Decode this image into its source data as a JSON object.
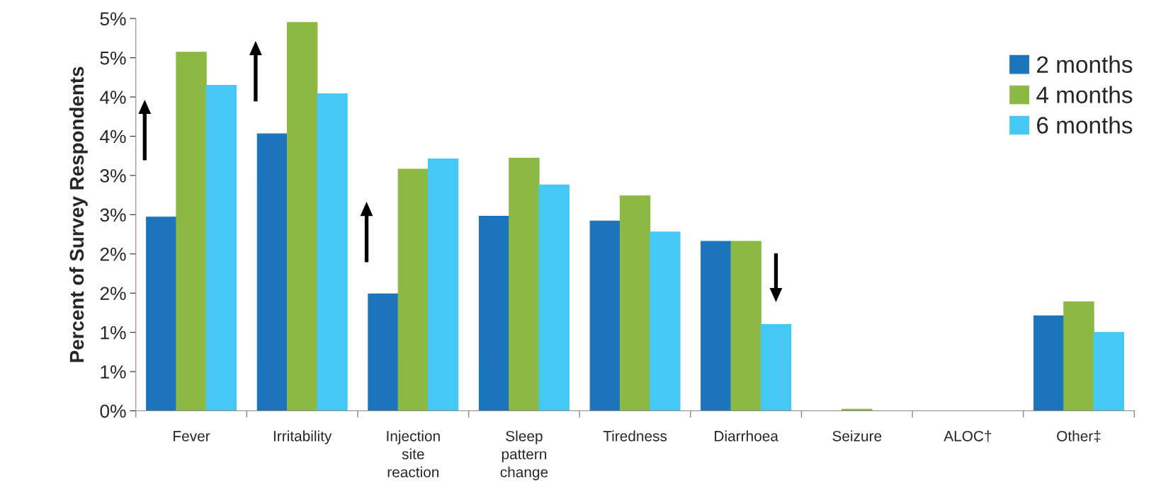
{
  "chart_data": {
    "type": "bar",
    "ylabel": "Percent of Survey Respondents",
    "categories": [
      "Fever",
      "Irritability",
      "Injection\nsite\nreaction",
      "Sleep\npattern\nchange",
      "Tiredness",
      "Diarrhoea",
      "Seizure",
      "ALOC†",
      "Other‡"
    ],
    "series": [
      {
        "name": "2 months",
        "color": "#1c75bc",
        "values": [
          2.47,
          3.53,
          1.49,
          2.48,
          2.42,
          2.16,
          0,
          0,
          1.21
        ]
      },
      {
        "name": "4 months",
        "color": "#8cb944",
        "values": [
          4.57,
          4.95,
          3.08,
          3.22,
          2.74,
          2.16,
          0.02,
          0,
          1.39
        ]
      },
      {
        "name": "6 months",
        "color": "#45c8f5",
        "values": [
          4.15,
          4.04,
          3.21,
          2.88,
          2.28,
          1.1,
          0,
          0,
          1.0
        ]
      }
    ],
    "ylim": [
      0,
      5
    ],
    "yticks": [
      {
        "value": 0,
        "label": "0%"
      },
      {
        "value": 0.5,
        "label": "1%"
      },
      {
        "value": 1,
        "label": "1%"
      },
      {
        "value": 1.5,
        "label": "2%"
      },
      {
        "value": 2,
        "label": "2%"
      },
      {
        "value": 2.5,
        "label": "3%"
      },
      {
        "value": 3,
        "label": "3%"
      },
      {
        "value": 3.5,
        "label": "4%"
      },
      {
        "value": 4,
        "label": "4%"
      },
      {
        "value": 4.5,
        "label": "5%"
      },
      {
        "value": 5,
        "label": "5%"
      }
    ],
    "grid": false,
    "legend": "top right"
  }
}
